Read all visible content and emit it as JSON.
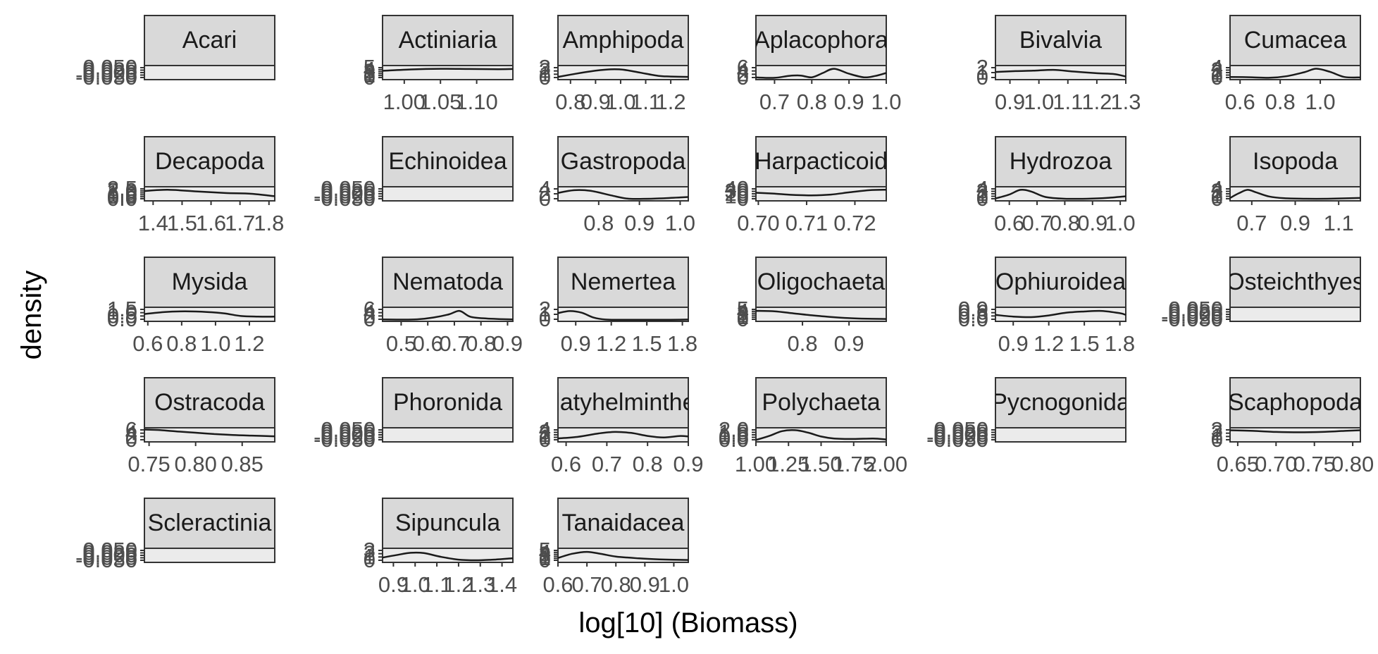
{
  "chart_data": {
    "type": "line",
    "xlabel": "log[10] (Biomass)",
    "ylabel": "density",
    "grid": false,
    "ncol": 6,
    "colors": {
      "strip_fill": "#d9d9d9",
      "panel_fill": "#ebebeb",
      "frame": "#333333",
      "line": "#1a1a1a",
      "tick_text": "#4d4d4d"
    },
    "panels": [
      {
        "name": "Acari",
        "xticks": [],
        "yticks": [
          "-0.050",
          "-0.025",
          "0.000",
          "0.025",
          "0.050"
        ],
        "density": {
          "x": [],
          "y": []
        }
      },
      {
        "name": "Actiniaria",
        "xlim": [
          0.97,
          1.15
        ],
        "xticks": [
          "1.00",
          "1.05",
          "1.10"
        ],
        "xtick_values": [
          1.0,
          1.05,
          1.1
        ],
        "yticks": [
          "0",
          "1",
          "2",
          "3",
          "4",
          "5"
        ],
        "ylim": [
          0,
          5.5
        ],
        "density": {
          "x": [
            0.97,
            1.01,
            1.05,
            1.09,
            1.13,
            1.15
          ],
          "y": [
            3.6,
            4.3,
            4.6,
            4.5,
            4.4,
            4.5
          ]
        }
      },
      {
        "name": "Amphipoda",
        "xlim": [
          0.75,
          1.27
        ],
        "xticks": [
          "0.8",
          "0.9",
          "1.0",
          "1.1",
          "1.2"
        ],
        "xtick_values": [
          0.8,
          0.9,
          1.0,
          1.1,
          1.2
        ],
        "yticks": [
          "0",
          "1",
          "2",
          "3"
        ],
        "ylim": [
          0,
          3.3
        ],
        "density": {
          "x": [
            0.75,
            0.82,
            0.9,
            0.96,
            1.01,
            1.08,
            1.15,
            1.2,
            1.27
          ],
          "y": [
            0.4,
            1.3,
            2.2,
            2.6,
            2.5,
            1.6,
            0.7,
            0.5,
            0.4
          ]
        }
      },
      {
        "name": "Aplacophora",
        "xlim": [
          0.65,
          1.0
        ],
        "xticks": [
          "0.7",
          "0.8",
          "0.9",
          "1.0"
        ],
        "xtick_values": [
          0.7,
          0.8,
          0.9,
          1.0
        ],
        "yticks": [
          "0",
          "2",
          "4",
          "6"
        ],
        "ylim": [
          0,
          7.5
        ],
        "density": {
          "x": [
            0.65,
            0.7,
            0.74,
            0.77,
            0.8,
            0.83,
            0.86,
            0.9,
            0.94,
            0.97,
            1.0
          ],
          "y": [
            0.5,
            0.3,
            1.6,
            1.8,
            0.6,
            3.5,
            6.3,
            3.0,
            0.6,
            1.5,
            3.5
          ]
        }
      },
      {
        "name": "Bivalvia",
        "xlim": [
          0.85,
          1.3
        ],
        "xticks": [
          "0.9",
          "1.0",
          "1.1",
          "1.2",
          "1.3"
        ],
        "xtick_values": [
          0.9,
          1.0,
          1.1,
          1.2,
          1.3
        ],
        "yticks": [
          "0",
          "1",
          "2"
        ],
        "ylim": [
          0,
          2.7
        ],
        "density": {
          "x": [
            0.85,
            0.92,
            0.98,
            1.05,
            1.12,
            1.2,
            1.26,
            1.3
          ],
          "y": [
            1.5,
            1.7,
            1.8,
            2.0,
            1.6,
            1.2,
            1.0,
            0.4
          ]
        }
      },
      {
        "name": "Cumacea",
        "xlim": [
          0.55,
          1.2
        ],
        "xticks": [
          "0.6",
          "0.8",
          "1.0"
        ],
        "xtick_values": [
          0.6,
          0.8,
          1.0
        ],
        "yticks": [
          "0",
          "1",
          "2",
          "3",
          "4"
        ],
        "ylim": [
          0,
          4.5
        ],
        "density": {
          "x": [
            0.55,
            0.65,
            0.75,
            0.83,
            0.92,
            0.98,
            1.05,
            1.12,
            1.2
          ],
          "y": [
            0.5,
            0.4,
            0.2,
            0.8,
            2.4,
            3.8,
            2.5,
            0.5,
            0.3
          ]
        }
      },
      {
        "name": "Decapoda",
        "xlim": [
          1.37,
          1.82
        ],
        "xticks": [
          "1.4",
          "1.5",
          "1.6",
          "1.7",
          "1.8"
        ],
        "xtick_values": [
          1.4,
          1.5,
          1.6,
          1.7,
          1.8
        ],
        "yticks": [
          "0.0",
          "0.5",
          "1.0",
          "1.5",
          "2.0",
          "2.5"
        ],
        "ylim": [
          0,
          2.8
        ],
        "density": {
          "x": [
            1.37,
            1.45,
            1.55,
            1.65,
            1.74,
            1.82
          ],
          "y": [
            2.1,
            2.4,
            2.0,
            1.6,
            1.4,
            0.8
          ]
        }
      },
      {
        "name": "Echinoidea",
        "xticks": [],
        "yticks": [
          "-0.050",
          "-0.025",
          "0.000",
          "0.025",
          "0.050"
        ],
        "density": {
          "x": [],
          "y": []
        }
      },
      {
        "name": "Gastropoda",
        "xlim": [
          0.7,
          1.02
        ],
        "xticks": [
          "0.8",
          "0.9",
          "1.0"
        ],
        "xtick_values": [
          0.8,
          0.9,
          1.0
        ],
        "yticks": [
          "0",
          "2",
          "4"
        ],
        "ylim": [
          0,
          5.5
        ],
        "density": {
          "x": [
            0.7,
            0.74,
            0.78,
            0.83,
            0.87,
            0.91,
            0.95,
            1.0,
            1.02
          ],
          "y": [
            3.2,
            4.5,
            4.2,
            2.0,
            0.4,
            0.3,
            0.5,
            1.0,
            1.2
          ]
        }
      },
      {
        "name": "Harpacticoid",
        "xlim": [
          0.6995,
          0.7265
        ],
        "xticks": [
          "0.70",
          "0.71",
          "0.72"
        ],
        "xtick_values": [
          0.7,
          0.71,
          0.72
        ],
        "yticks": [
          "0",
          "10",
          "20",
          "30",
          "40"
        ],
        "ylim": [
          0,
          44
        ],
        "density": {
          "x": [
            0.6995,
            0.703,
            0.707,
            0.711,
            0.715,
            0.719,
            0.723,
            0.7265
          ],
          "y": [
            26,
            23,
            18,
            16,
            19,
            28,
            36,
            38
          ]
        }
      },
      {
        "name": "Hydrozoa",
        "xlim": [
          0.55,
          1.02
        ],
        "xticks": [
          "0.6",
          "0.7",
          "0.8",
          "0.9",
          "1.0"
        ],
        "xtick_values": [
          0.6,
          0.7,
          0.8,
          0.9,
          1.0
        ],
        "yticks": [
          "0",
          "1",
          "2",
          "3",
          "4"
        ],
        "ylim": [
          0,
          4.6
        ],
        "density": {
          "x": [
            0.55,
            0.6,
            0.64,
            0.68,
            0.73,
            0.8,
            0.88,
            0.95,
            1.02
          ],
          "y": [
            0.4,
            2.0,
            3.9,
            3.2,
            1.0,
            0.3,
            0.3,
            0.6,
            1.3
          ]
        }
      },
      {
        "name": "Isopoda",
        "xlim": [
          0.6,
          1.2
        ],
        "xticks": [
          "0.7",
          "0.9",
          "1.1"
        ],
        "xtick_values": [
          0.7,
          0.9,
          1.1
        ],
        "yticks": [
          "0",
          "1",
          "2",
          "3",
          "4"
        ],
        "ylim": [
          0,
          4.6
        ],
        "density": {
          "x": [
            0.6,
            0.64,
            0.68,
            0.72,
            0.78,
            0.85,
            0.95,
            1.05,
            1.2
          ],
          "y": [
            0.6,
            2.5,
            3.9,
            2.9,
            1.2,
            0.5,
            0.3,
            0.3,
            0.6
          ]
        }
      },
      {
        "name": "Mysida",
        "xlim": [
          0.58,
          1.35
        ],
        "xticks": [
          "0.6",
          "0.8",
          "1.0",
          "1.2"
        ],
        "xtick_values": [
          0.6,
          0.8,
          1.0,
          1.2
        ],
        "yticks": [
          "0.0",
          "0.5",
          "1.0",
          "1.5"
        ],
        "ylim": [
          0,
          1.7
        ],
        "density": {
          "x": [
            0.58,
            0.7,
            0.82,
            0.95,
            1.05,
            1.15,
            1.25,
            1.35
          ],
          "y": [
            0.9,
            1.2,
            1.3,
            1.2,
            1.0,
            0.6,
            0.5,
            0.5
          ]
        }
      },
      {
        "name": "Nematoda",
        "xlim": [
          0.43,
          0.92
        ],
        "xticks": [
          "0.5",
          "0.6",
          "0.7",
          "0.8",
          "0.9"
        ],
        "xtick_values": [
          0.5,
          0.6,
          0.7,
          0.8,
          0.9
        ],
        "yticks": [
          "0",
          "2",
          "4",
          "6"
        ],
        "ylim": [
          0,
          7
        ],
        "density": {
          "x": [
            0.43,
            0.5,
            0.56,
            0.62,
            0.68,
            0.72,
            0.76,
            0.82,
            0.88,
            0.92
          ],
          "y": [
            0.3,
            0.2,
            0.4,
            1.5,
            3.5,
            5.6,
            2.0,
            0.9,
            0.5,
            0.3
          ]
        }
      },
      {
        "name": "Nemertea",
        "xlim": [
          0.75,
          1.85
        ],
        "xticks": [
          "0.9",
          "1.2",
          "1.5",
          "1.8"
        ],
        "xtick_values": [
          0.9,
          1.2,
          1.5,
          1.8
        ],
        "yticks": [
          "0",
          "1",
          "2"
        ],
        "ylim": [
          0,
          2.8
        ],
        "density": {
          "x": [
            0.75,
            0.85,
            0.95,
            1.05,
            1.15,
            1.3,
            1.5,
            1.7,
            1.85
          ],
          "y": [
            1.7,
            2.2,
            1.8,
            0.6,
            0.1,
            0.05,
            0.05,
            0.05,
            0.1
          ]
        }
      },
      {
        "name": "Oligochaeta",
        "xlim": [
          0.7,
          0.98
        ],
        "xticks": [
          "0.8",
          "0.9"
        ],
        "xtick_values": [
          0.8,
          0.9
        ],
        "yticks": [
          "0",
          "1",
          "2",
          "3",
          "4",
          "5"
        ],
        "ylim": [
          0,
          5.6
        ],
        "density": {
          "x": [
            0.7,
            0.74,
            0.78,
            0.82,
            0.86,
            0.9,
            0.94,
            0.98
          ],
          "y": [
            4.5,
            4.3,
            3.3,
            2.3,
            1.5,
            0.9,
            0.6,
            0.5
          ]
        }
      },
      {
        "name": "Ophiuroidea",
        "xlim": [
          0.75,
          1.85
        ],
        "xticks": [
          "0.9",
          "1.2",
          "1.5",
          "1.8"
        ],
        "xtick_values": [
          0.9,
          1.2,
          1.5,
          1.8
        ],
        "yticks": [
          "0.0",
          "0.3",
          "0.6",
          "0.9"
        ],
        "ylim": [
          0,
          1.0
        ],
        "density": {
          "x": [
            0.75,
            0.9,
            1.05,
            1.2,
            1.35,
            1.5,
            1.65,
            1.8,
            1.85
          ],
          "y": [
            0.45,
            0.3,
            0.25,
            0.4,
            0.65,
            0.75,
            0.8,
            0.6,
            0.45
          ]
        }
      },
      {
        "name": "Osteichthyes",
        "xticks": [],
        "yticks": [
          "-0.050",
          "-0.025",
          "0.000",
          "0.025",
          "0.050"
        ],
        "density": {
          "x": [],
          "y": []
        }
      },
      {
        "name": "Ostracoda",
        "xlim": [
          0.745,
          0.885
        ],
        "xticks": [
          "0.75",
          "0.80",
          "0.85"
        ],
        "xtick_values": [
          0.75,
          0.8,
          0.85
        ],
        "yticks": [
          "0",
          "2",
          "4",
          "6"
        ],
        "ylim": [
          0,
          7
        ],
        "density": {
          "x": [
            0.745,
            0.76,
            0.78,
            0.8,
            0.82,
            0.84,
            0.86,
            0.885
          ],
          "y": [
            6.8,
            6.5,
            5.6,
            4.8,
            4.0,
            3.4,
            3.0,
            2.6
          ]
        }
      },
      {
        "name": "Phoronida",
        "xticks": [],
        "yticks": [
          "-0.050",
          "-0.025",
          "0.000",
          "0.025",
          "0.050"
        ],
        "density": {
          "x": [],
          "y": []
        }
      },
      {
        "name": "Platyhelminthes",
        "xlim": [
          0.58,
          0.9
        ],
        "xticks": [
          "0.6",
          "0.7",
          "0.8",
          "0.9"
        ],
        "xtick_values": [
          0.6,
          0.7,
          0.8,
          0.9
        ],
        "yticks": [
          "0",
          "1",
          "2",
          "3",
          "4"
        ],
        "ylim": [
          0,
          4.5
        ],
        "density": {
          "x": [
            0.58,
            0.63,
            0.68,
            0.72,
            0.76,
            0.8,
            0.84,
            0.88,
            0.9
          ],
          "y": [
            0.8,
            1.5,
            2.8,
            3.4,
            3.0,
            1.8,
            1.2,
            1.8,
            1.6
          ]
        }
      },
      {
        "name": "Polychaeta",
        "xlim": [
          1.0,
          2.0
        ],
        "xticks": [
          "1.00",
          "1.25",
          "1.50",
          "1.75",
          "2.00"
        ],
        "xtick_values": [
          1.0,
          1.25,
          1.5,
          1.75,
          2.0
        ],
        "yticks": [
          "0.0",
          "0.5",
          "1.0",
          "1.5",
          "2.0"
        ],
        "ylim": [
          0,
          2.3
        ],
        "density": {
          "x": [
            1.0,
            1.1,
            1.2,
            1.3,
            1.4,
            1.5,
            1.6,
            1.75,
            1.9,
            2.0
          ],
          "y": [
            0.1,
            0.9,
            1.9,
            2.1,
            1.6,
            0.8,
            0.4,
            0.3,
            0.4,
            0.2
          ]
        }
      },
      {
        "name": "Pycnogonida",
        "xticks": [],
        "yticks": [
          "-0.050",
          "-0.025",
          "0.000",
          "0.025",
          "0.050"
        ],
        "density": {
          "x": [],
          "y": []
        }
      },
      {
        "name": "Scaphopoda",
        "xlim": [
          0.64,
          0.81
        ],
        "xticks": [
          "0.65",
          "0.70",
          "0.75",
          "0.80"
        ],
        "xtick_values": [
          0.65,
          0.7,
          0.75,
          0.8
        ],
        "yticks": [
          "0",
          "1",
          "2",
          "3"
        ],
        "ylim": [
          0,
          3.3
        ],
        "density": {
          "x": [
            0.64,
            0.67,
            0.7,
            0.73,
            0.76,
            0.79,
            0.81
          ],
          "y": [
            3.0,
            2.8,
            2.5,
            2.4,
            2.5,
            2.8,
            3.0
          ]
        }
      },
      {
        "name": "Scleractinia",
        "xticks": [],
        "yticks": [
          "-0.050",
          "-0.025",
          "0.000",
          "0.025",
          "0.050"
        ],
        "density": {
          "x": [],
          "y": []
        }
      },
      {
        "name": "Sipuncula",
        "xlim": [
          0.85,
          1.45
        ],
        "xticks": [
          "0.9",
          "1.0",
          "1.1",
          "1.2",
          "1.3",
          "1.4"
        ],
        "xtick_values": [
          0.9,
          1.0,
          1.1,
          1.2,
          1.3,
          1.4
        ],
        "yticks": [
          "0",
          "1",
          "2",
          "3"
        ],
        "ylim": [
          0,
          3.3
        ],
        "density": {
          "x": [
            0.85,
            0.92,
            0.98,
            1.04,
            1.12,
            1.2,
            1.28,
            1.36,
            1.45
          ],
          "y": [
            1.0,
            1.8,
            2.4,
            2.3,
            1.2,
            0.4,
            0.2,
            0.4,
            0.8
          ]
        }
      },
      {
        "name": "Tanaidacea",
        "xlim": [
          0.6,
          1.05
        ],
        "xticks": [
          "0.6",
          "0.7",
          "0.8",
          "0.9",
          "1.0"
        ],
        "xtick_values": [
          0.6,
          0.7,
          0.8,
          0.9,
          1.0
        ],
        "yticks": [
          "0",
          "1",
          "2",
          "3",
          "4",
          "5"
        ],
        "ylim": [
          0,
          5.6
        ],
        "density": {
          "x": [
            0.6,
            0.65,
            0.7,
            0.75,
            0.8,
            0.88,
            0.95,
            1.0,
            1.05
          ],
          "y": [
            1.5,
            3.6,
            4.5,
            3.5,
            2.2,
            1.3,
            0.8,
            0.6,
            0.5
          ]
        }
      }
    ]
  }
}
